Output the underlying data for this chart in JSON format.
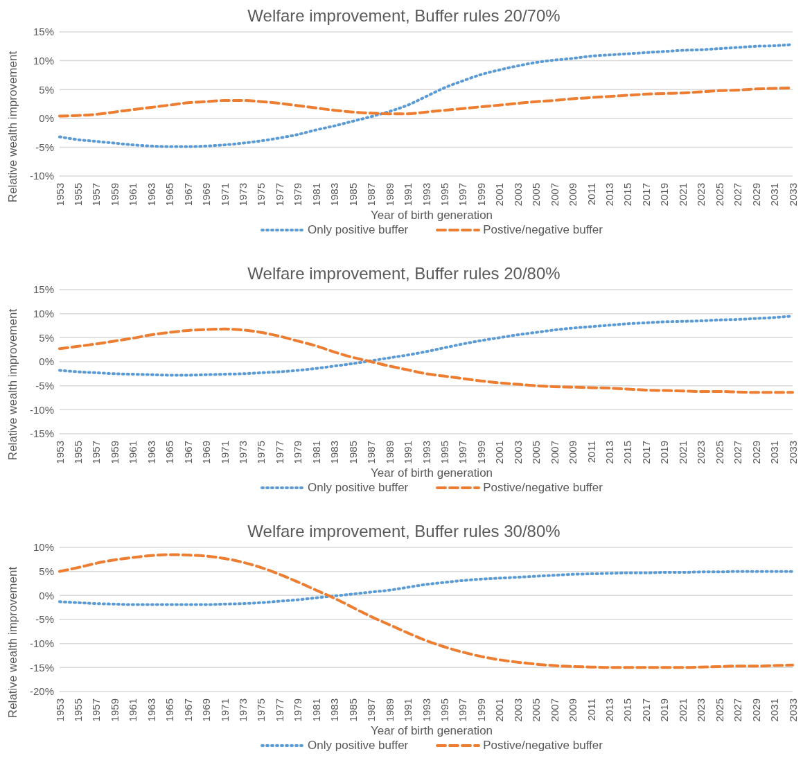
{
  "chart_data": [
    {
      "type": "line",
      "title": "Welfare improvement, Buffer rules 20/70%",
      "xlabel": "Year of birth generation",
      "ylabel": "Relative wealth improvement",
      "categories": [
        "1953",
        "1955",
        "1957",
        "1959",
        "1961",
        "1963",
        "1965",
        "1967",
        "1969",
        "1971",
        "1973",
        "1975",
        "1977",
        "1979",
        "1981",
        "1983",
        "1985",
        "1987",
        "1989",
        "1991",
        "1993",
        "1995",
        "1997",
        "1999",
        "2001",
        "2003",
        "2005",
        "2007",
        "2009",
        "2011",
        "2013",
        "2015",
        "2017",
        "2019",
        "2021",
        "2023",
        "2025",
        "2027",
        "2029",
        "2031",
        "2033"
      ],
      "series": [
        {
          "name": "Only positive buffer",
          "color": "#5b9bd5",
          "line_style": "dotted",
          "values": [
            -3.2,
            -3.7,
            -4.0,
            -4.3,
            -4.6,
            -4.8,
            -4.9,
            -4.9,
            -4.8,
            -4.6,
            -4.3,
            -3.9,
            -3.4,
            -2.8,
            -2.0,
            -1.3,
            -0.5,
            0.3,
            1.2,
            2.3,
            3.8,
            5.3,
            6.5,
            7.6,
            8.4,
            9.1,
            9.7,
            10.1,
            10.4,
            10.8,
            11.0,
            11.2,
            11.4,
            11.6,
            11.8,
            11.9,
            12.1,
            12.3,
            12.5,
            12.6,
            12.8
          ]
        },
        {
          "name": "Postive/negative buffer",
          "color": "#ed7d31",
          "line_style": "dashed",
          "values": [
            0.4,
            0.5,
            0.7,
            1.1,
            1.5,
            1.9,
            2.3,
            2.7,
            2.9,
            3.1,
            3.1,
            2.9,
            2.6,
            2.2,
            1.8,
            1.4,
            1.1,
            0.9,
            0.8,
            0.8,
            1.1,
            1.4,
            1.7,
            2.0,
            2.3,
            2.6,
            2.9,
            3.1,
            3.4,
            3.6,
            3.8,
            4.0,
            4.2,
            4.3,
            4.4,
            4.6,
            4.8,
            4.9,
            5.1,
            5.2,
            5.3
          ]
        }
      ],
      "ylim": [
        -10,
        15
      ],
      "yticks": [
        {
          "value": -10,
          "label": "-10%"
        },
        {
          "value": -5,
          "label": "-5%"
        },
        {
          "value": 0,
          "label": "0%"
        },
        {
          "value": 5,
          "label": "5%"
        },
        {
          "value": 10,
          "label": "10%"
        },
        {
          "value": 15,
          "label": "15%"
        }
      ],
      "grid": "y",
      "legend": "bottom",
      "marker": "none"
    },
    {
      "type": "line",
      "title": "Welfare improvement, Buffer rules 20/80%",
      "xlabel": "Year of birth generation",
      "ylabel": "Relative wealth improvement",
      "categories": [
        "1953",
        "1955",
        "1957",
        "1959",
        "1961",
        "1963",
        "1965",
        "1967",
        "1969",
        "1971",
        "1973",
        "1975",
        "1977",
        "1979",
        "1981",
        "1983",
        "1985",
        "1987",
        "1989",
        "1991",
        "1993",
        "1995",
        "1997",
        "1999",
        "2001",
        "2003",
        "2005",
        "2007",
        "2009",
        "2011",
        "2013",
        "2015",
        "2017",
        "2019",
        "2021",
        "2023",
        "2025",
        "2027",
        "2029",
        "2031",
        "2033"
      ],
      "series": [
        {
          "name": "Only positive buffer",
          "color": "#5b9bd5",
          "line_style": "dotted",
          "values": [
            -1.8,
            -2.1,
            -2.3,
            -2.5,
            -2.6,
            -2.7,
            -2.8,
            -2.8,
            -2.7,
            -2.6,
            -2.5,
            -2.3,
            -2.1,
            -1.8,
            -1.4,
            -0.9,
            -0.4,
            0.2,
            0.8,
            1.4,
            2.1,
            2.9,
            3.7,
            4.4,
            5.0,
            5.6,
            6.1,
            6.6,
            7.0,
            7.3,
            7.6,
            7.9,
            8.1,
            8.3,
            8.4,
            8.5,
            8.7,
            8.8,
            9.0,
            9.2,
            9.5
          ]
        },
        {
          "name": "Postive/negative buffer",
          "color": "#ed7d31",
          "line_style": "dashed",
          "values": [
            2.7,
            3.2,
            3.7,
            4.3,
            4.9,
            5.6,
            6.1,
            6.5,
            6.7,
            6.8,
            6.6,
            6.1,
            5.3,
            4.3,
            3.3,
            2.0,
            0.9,
            0,
            -0.9,
            -1.7,
            -2.5,
            -3.0,
            -3.5,
            -4.0,
            -4.4,
            -4.7,
            -5.0,
            -5.2,
            -5.3,
            -5.4,
            -5.5,
            -5.7,
            -5.9,
            -6.0,
            -6.1,
            -6.2,
            -6.2,
            -6.3,
            -6.4,
            -6.4,
            -6.4
          ]
        }
      ],
      "ylim": [
        -15,
        15
      ],
      "yticks": [
        {
          "value": -15,
          "label": "-15%"
        },
        {
          "value": -10,
          "label": "-10%"
        },
        {
          "value": -5,
          "label": "-5%"
        },
        {
          "value": 0,
          "label": "0%"
        },
        {
          "value": 5,
          "label": "5%"
        },
        {
          "value": 10,
          "label": "10%"
        },
        {
          "value": 15,
          "label": "15%"
        }
      ],
      "grid": "y",
      "legend": "bottom",
      "marker": "none"
    },
    {
      "type": "line",
      "title": "Welfare improvement, Buffer rules 30/80%",
      "xlabel": "Year of birth generation",
      "ylabel": "Relative wealth improvement",
      "categories": [
        "1953",
        "1955",
        "1957",
        "1959",
        "1961",
        "1963",
        "1965",
        "1967",
        "1969",
        "1971",
        "1973",
        "1975",
        "1977",
        "1979",
        "1981",
        "1983",
        "1985",
        "1987",
        "1989",
        "1991",
        "1993",
        "1995",
        "1997",
        "1999",
        "2001",
        "2003",
        "2005",
        "2007",
        "2009",
        "2011",
        "2013",
        "2015",
        "2017",
        "2019",
        "2021",
        "2023",
        "2025",
        "2027",
        "2029",
        "2031",
        "2033"
      ],
      "series": [
        {
          "name": "Only positive buffer",
          "color": "#5b9bd5",
          "line_style": "dotted",
          "values": [
            -1.3,
            -1.5,
            -1.7,
            -1.8,
            -1.9,
            -1.9,
            -1.9,
            -1.9,
            -1.9,
            -1.8,
            -1.7,
            -1.5,
            -1.2,
            -0.9,
            -0.5,
            -0.1,
            0.3,
            0.7,
            1.1,
            1.7,
            2.3,
            2.7,
            3.1,
            3.4,
            3.6,
            3.8,
            4.0,
            4.2,
            4.4,
            4.5,
            4.6,
            4.7,
            4.7,
            4.8,
            4.8,
            4.9,
            4.9,
            5.0,
            5.0,
            5.0,
            5.0
          ]
        },
        {
          "name": "Postive/negative buffer",
          "color": "#ed7d31",
          "line_style": "dashed",
          "values": [
            5.0,
            5.8,
            6.7,
            7.4,
            7.9,
            8.3,
            8.5,
            8.4,
            8.2,
            7.7,
            6.9,
            5.8,
            4.4,
            2.8,
            1.1,
            -0.6,
            -2.5,
            -4.4,
            -6.1,
            -7.8,
            -9.4,
            -10.7,
            -11.8,
            -12.7,
            -13.4,
            -13.9,
            -14.3,
            -14.6,
            -14.8,
            -14.9,
            -15.0,
            -15.0,
            -15.0,
            -15.0,
            -15.0,
            -14.9,
            -14.8,
            -14.7,
            -14.7,
            -14.6,
            -14.5
          ]
        }
      ],
      "ylim": [
        -20,
        10
      ],
      "yticks": [
        {
          "value": -20,
          "label": "-20%"
        },
        {
          "value": -15,
          "label": "-15%"
        },
        {
          "value": -10,
          "label": "-10%"
        },
        {
          "value": -5,
          "label": "-5%"
        },
        {
          "value": 0,
          "label": "0%"
        },
        {
          "value": 5,
          "label": "5%"
        },
        {
          "value": 10,
          "label": "10%"
        }
      ],
      "grid": "y",
      "legend": "bottom",
      "marker": "none"
    }
  ]
}
